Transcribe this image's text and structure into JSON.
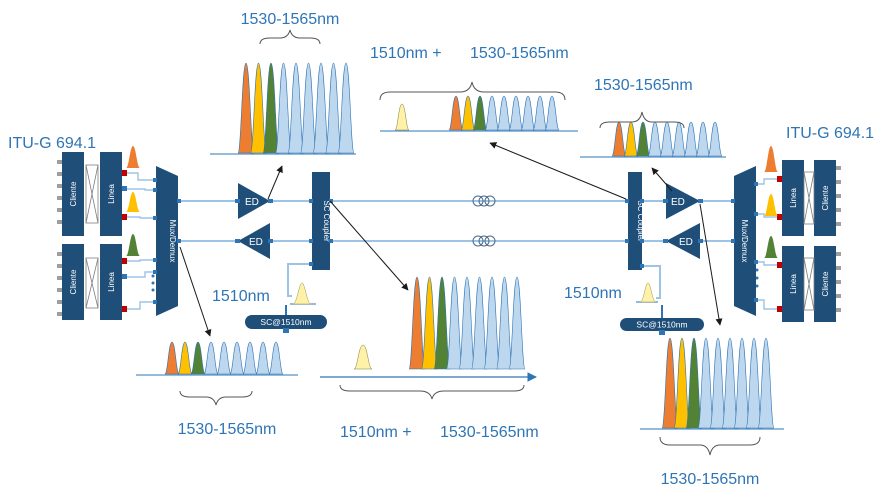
{
  "labels": {
    "band": "1530-1565nm",
    "band_plus": "1510nm +",
    "osc_wavelength": "1510nm",
    "itu": "ITU-G 694.1",
    "amplifier": "ED",
    "mux": "Mux/Demux",
    "coupler": "SC Coupler",
    "sc_block": "SC@1510nm",
    "client": "Cliente",
    "line": "Linea"
  },
  "colors": {
    "accent_text": "#2E75B6",
    "equipment": "#1F4E79",
    "channel_orange": "#ED7D31",
    "channel_yellow": "#FFC000",
    "channel_green": "#548235",
    "channel_lightblue": "#BDD7EE",
    "osc_lightyellow": "#FFF2A8",
    "port_red": "#C00000"
  },
  "icons": [
    "fiber-coil-icon",
    "spectrum-icon",
    "amplifier-icon",
    "arrow-icon"
  ]
}
